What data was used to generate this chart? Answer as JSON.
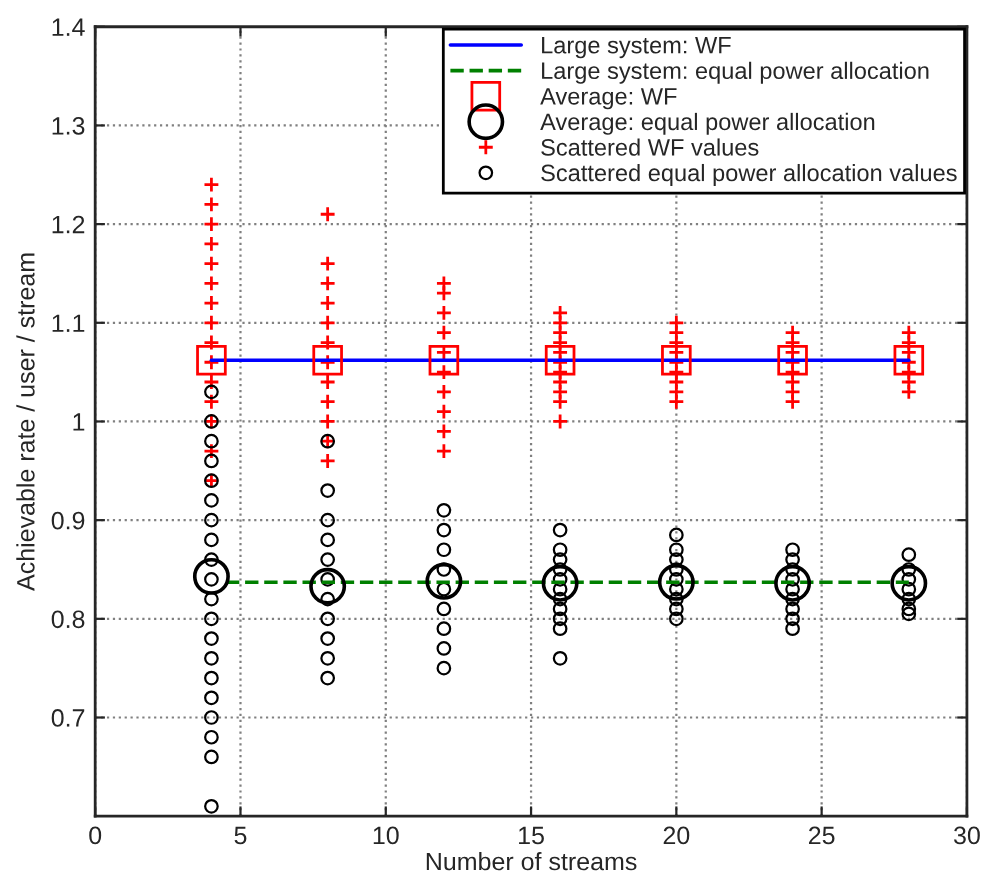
{
  "chart_data": {
    "type": "scatter",
    "xlabel": "Number of streams",
    "ylabel": "Achievable rate / user / stream",
    "xlim": [
      0,
      30
    ],
    "xticks": [
      0,
      5,
      10,
      15,
      20,
      25,
      30
    ],
    "ylim": [
      0.6,
      1.4
    ],
    "yticks": [
      0.7,
      0.8,
      0.9,
      1,
      1.1,
      1.2,
      1.3,
      1.4
    ],
    "grid": true,
    "legend": "top right",
    "series": [
      {
        "name": "Large system: WF",
        "type": "line",
        "color": "#0000ff",
        "line_style": "solid",
        "marker": "none",
        "x": [
          4,
          28
        ],
        "values": [
          1.062,
          1.062
        ]
      },
      {
        "name": "Large system: equal power allocation",
        "type": "line",
        "color": "#008000",
        "line_style": "dashed",
        "marker": "none",
        "x": [
          4.5,
          28
        ],
        "values": [
          0.837,
          0.837
        ]
      },
      {
        "name": "Average: WF",
        "color": "#ff0000",
        "marker": "square",
        "x": [
          4,
          8,
          12,
          16,
          20,
          24,
          28
        ],
        "values": [
          1.062,
          1.062,
          1.062,
          1.062,
          1.062,
          1.062,
          1.062
        ]
      },
      {
        "name": "Average: equal power allocation",
        "color": "#000000",
        "marker": "circle",
        "x": [
          4,
          8,
          12,
          16,
          20,
          24,
          28
        ],
        "values": [
          0.843,
          0.833,
          0.838,
          0.836,
          0.837,
          0.836,
          0.836
        ]
      },
      {
        "name": "Scattered WF values",
        "color": "#ff0000",
        "marker": "cross",
        "x": [
          4,
          4,
          4,
          4,
          4,
          4,
          4,
          4,
          4,
          4,
          4,
          4,
          4,
          4,
          4,
          8,
          8,
          8,
          8,
          8,
          8,
          8,
          8,
          8,
          8,
          8,
          8,
          12,
          12,
          12,
          12,
          12,
          12,
          12,
          12,
          12,
          12,
          16,
          16,
          16,
          16,
          16,
          16,
          16,
          16,
          16,
          16,
          16,
          20,
          20,
          20,
          20,
          20,
          20,
          20,
          20,
          20,
          24,
          24,
          24,
          24,
          24,
          24,
          24,
          24,
          28,
          28,
          28,
          28,
          28,
          28,
          28
        ],
        "values": [
          0.94,
          0.97,
          1.0,
          1.02,
          1.04,
          1.06,
          1.08,
          1.1,
          1.12,
          1.14,
          1.16,
          1.18,
          1.2,
          1.22,
          1.24,
          0.96,
          0.98,
          1.0,
          1.02,
          1.04,
          1.06,
          1.08,
          1.1,
          1.12,
          1.14,
          1.16,
          1.21,
          0.97,
          0.99,
          1.01,
          1.03,
          1.05,
          1.07,
          1.09,
          1.11,
          1.13,
          1.14,
          1.0,
          1.02,
          1.03,
          1.04,
          1.05,
          1.06,
          1.07,
          1.08,
          1.09,
          1.1,
          1.11,
          1.02,
          1.03,
          1.04,
          1.05,
          1.06,
          1.07,
          1.08,
          1.09,
          1.1,
          1.02,
          1.03,
          1.04,
          1.05,
          1.06,
          1.07,
          1.08,
          1.09,
          1.03,
          1.04,
          1.05,
          1.06,
          1.07,
          1.08,
          1.09
        ]
      },
      {
        "name": "Scattered equal power allocation values",
        "color": "#000000",
        "marker": "circle_small",
        "x": [
          4,
          4,
          4,
          4,
          4,
          4,
          4,
          4,
          4,
          4,
          4,
          4,
          4,
          4,
          4,
          4,
          4,
          4,
          4,
          4,
          8,
          8,
          8,
          8,
          8,
          8,
          8,
          8,
          8,
          8,
          8,
          12,
          12,
          12,
          12,
          12,
          12,
          12,
          12,
          12,
          16,
          16,
          16,
          16,
          16,
          16,
          16,
          16,
          16,
          16,
          16,
          20,
          20,
          20,
          20,
          20,
          20,
          20,
          20,
          20,
          24,
          24,
          24,
          24,
          24,
          24,
          24,
          24,
          24,
          28,
          28,
          28,
          28,
          28,
          28,
          28
        ],
        "values": [
          0.61,
          0.66,
          0.68,
          0.7,
          0.72,
          0.74,
          0.76,
          0.78,
          0.8,
          0.82,
          0.84,
          0.86,
          0.88,
          0.9,
          0.92,
          0.94,
          0.96,
          0.98,
          1.0,
          1.03,
          0.74,
          0.76,
          0.78,
          0.8,
          0.82,
          0.84,
          0.86,
          0.88,
          0.9,
          0.93,
          0.98,
          0.75,
          0.77,
          0.79,
          0.81,
          0.83,
          0.85,
          0.87,
          0.89,
          0.91,
          0.76,
          0.79,
          0.8,
          0.81,
          0.82,
          0.83,
          0.84,
          0.85,
          0.86,
          0.87,
          0.89,
          0.8,
          0.81,
          0.82,
          0.83,
          0.84,
          0.85,
          0.86,
          0.87,
          0.885,
          0.79,
          0.8,
          0.81,
          0.82,
          0.83,
          0.84,
          0.85,
          0.86,
          0.87,
          0.805,
          0.81,
          0.82,
          0.83,
          0.84,
          0.85,
          0.865
        ]
      }
    ]
  }
}
